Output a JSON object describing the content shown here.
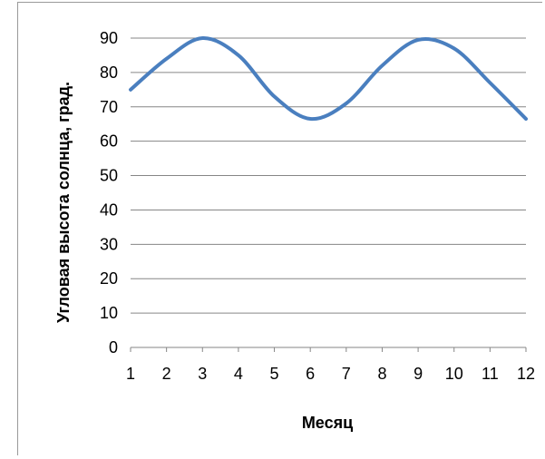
{
  "chart_data": {
    "type": "line",
    "title": "",
    "xlabel": "Месяц",
    "ylabel": "Угловая высота солнца, град.",
    "categories": [
      "1",
      "2",
      "3",
      "4",
      "5",
      "6",
      "7",
      "8",
      "9",
      "10",
      "11",
      "12"
    ],
    "x": [
      1,
      2,
      3,
      4,
      5,
      6,
      7,
      8,
      9,
      10,
      11,
      12
    ],
    "series": [
      {
        "values": [
          75,
          84,
          90,
          85,
          73,
          66.5,
          71,
          82,
          89.5,
          87,
          77,
          66.5
        ],
        "color": "#4a7fbf"
      }
    ],
    "xlim": [
      1,
      12
    ],
    "ylim": [
      0,
      90
    ],
    "yticks": [
      0,
      10,
      20,
      30,
      40,
      50,
      60,
      70,
      80,
      90
    ],
    "grid": "horizontal",
    "legend": "none"
  }
}
